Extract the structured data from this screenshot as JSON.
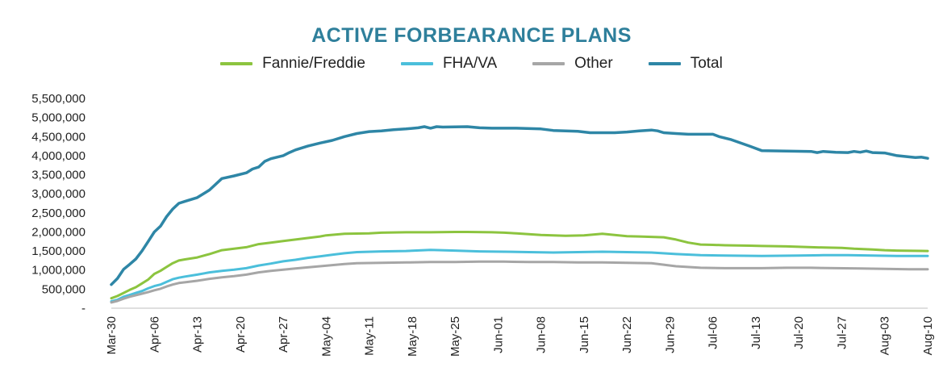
{
  "chart_data": {
    "type": "line",
    "title": "ACTIVE FORBEARANCE PLANS",
    "xlabel": "",
    "ylabel": "",
    "ylim": [
      0,
      5500000
    ],
    "yticks": [
      0,
      500000,
      1000000,
      1500000,
      2000000,
      2500000,
      3000000,
      3500000,
      4000000,
      4500000,
      5000000,
      5500000
    ],
    "ytick_labels": [
      "-",
      "500,000",
      "1,000,000",
      "1,500,000",
      "2,000,000",
      "2,500,000",
      "3,000,000",
      "3,500,000",
      "4,000,000",
      "4,500,000",
      "5,000,000",
      "5,500,000"
    ],
    "xtick_labels": [
      "Mar-30",
      "Apr-06",
      "Apr-13",
      "Apr-20",
      "Apr-27",
      "May-04",
      "May-11",
      "May-18",
      "May-25",
      "Jun-01",
      "Jun-08",
      "Jun-15",
      "Jun-22",
      "Jun-29",
      "Jul-06",
      "Jul-13",
      "Jul-20",
      "Jul-27",
      "Aug-03",
      "Aug-10"
    ],
    "grid": false,
    "legend_position": "top-center",
    "series": [
      {
        "name": "Fannie/Freddie",
        "color": "#8cc43f",
        "points": [
          [
            0,
            260000
          ],
          [
            1,
            320000
          ],
          [
            2,
            400000
          ],
          [
            3,
            480000
          ],
          [
            4,
            550000
          ],
          [
            5,
            650000
          ],
          [
            6,
            750000
          ],
          [
            7,
            900000
          ],
          [
            8,
            980000
          ],
          [
            9,
            1080000
          ],
          [
            10,
            1180000
          ],
          [
            11,
            1250000
          ],
          [
            12,
            1280000
          ],
          [
            14,
            1330000
          ],
          [
            16,
            1420000
          ],
          [
            18,
            1520000
          ],
          [
            20,
            1560000
          ],
          [
            22,
            1600000
          ],
          [
            24,
            1680000
          ],
          [
            26,
            1720000
          ],
          [
            28,
            1760000
          ],
          [
            30,
            1800000
          ],
          [
            32,
            1840000
          ],
          [
            34,
            1880000
          ],
          [
            35,
            1910000
          ],
          [
            38,
            1950000
          ],
          [
            42,
            1960000
          ],
          [
            44,
            1980000
          ],
          [
            48,
            1990000
          ],
          [
            52,
            1990000
          ],
          [
            56,
            2000000
          ],
          [
            58,
            2000000
          ],
          [
            62,
            1990000
          ],
          [
            64,
            1980000
          ],
          [
            66,
            1960000
          ],
          [
            68,
            1940000
          ],
          [
            70,
            1920000
          ],
          [
            72,
            1910000
          ],
          [
            74,
            1900000
          ],
          [
            77,
            1910000
          ],
          [
            80,
            1950000
          ],
          [
            82,
            1920000
          ],
          [
            84,
            1890000
          ],
          [
            86,
            1880000
          ],
          [
            88,
            1870000
          ],
          [
            90,
            1860000
          ],
          [
            92,
            1800000
          ],
          [
            94,
            1720000
          ],
          [
            96,
            1670000
          ],
          [
            98,
            1660000
          ],
          [
            100,
            1650000
          ],
          [
            104,
            1640000
          ],
          [
            106,
            1630000
          ],
          [
            110,
            1620000
          ],
          [
            112,
            1610000
          ],
          [
            114,
            1600000
          ],
          [
            116,
            1590000
          ],
          [
            119,
            1580000
          ],
          [
            121,
            1560000
          ],
          [
            124,
            1540000
          ],
          [
            126,
            1520000
          ],
          [
            128,
            1510000
          ],
          [
            133,
            1500000
          ]
        ]
      },
      {
        "name": "FHA/VA",
        "color": "#4bbfdb",
        "points": [
          [
            0,
            180000
          ],
          [
            1,
            220000
          ],
          [
            2,
            300000
          ],
          [
            3,
            350000
          ],
          [
            4,
            400000
          ],
          [
            5,
            450000
          ],
          [
            6,
            520000
          ],
          [
            7,
            580000
          ],
          [
            8,
            620000
          ],
          [
            9,
            690000
          ],
          [
            10,
            760000
          ],
          [
            11,
            800000
          ],
          [
            12,
            830000
          ],
          [
            14,
            880000
          ],
          [
            16,
            940000
          ],
          [
            18,
            980000
          ],
          [
            20,
            1010000
          ],
          [
            22,
            1050000
          ],
          [
            24,
            1120000
          ],
          [
            26,
            1170000
          ],
          [
            28,
            1230000
          ],
          [
            30,
            1270000
          ],
          [
            32,
            1320000
          ],
          [
            34,
            1360000
          ],
          [
            36,
            1400000
          ],
          [
            38,
            1440000
          ],
          [
            40,
            1470000
          ],
          [
            44,
            1490000
          ],
          [
            48,
            1500000
          ],
          [
            52,
            1530000
          ],
          [
            56,
            1510000
          ],
          [
            60,
            1490000
          ],
          [
            64,
            1480000
          ],
          [
            68,
            1470000
          ],
          [
            72,
            1460000
          ],
          [
            76,
            1470000
          ],
          [
            80,
            1480000
          ],
          [
            84,
            1470000
          ],
          [
            88,
            1460000
          ],
          [
            92,
            1420000
          ],
          [
            96,
            1390000
          ],
          [
            100,
            1380000
          ],
          [
            106,
            1370000
          ],
          [
            112,
            1380000
          ],
          [
            116,
            1390000
          ],
          [
            120,
            1390000
          ],
          [
            124,
            1380000
          ],
          [
            128,
            1370000
          ],
          [
            133,
            1370000
          ]
        ]
      },
      {
        "name": "Other",
        "color": "#a6a6a6",
        "points": [
          [
            0,
            150000
          ],
          [
            1,
            190000
          ],
          [
            2,
            250000
          ],
          [
            3,
            300000
          ],
          [
            4,
            340000
          ],
          [
            5,
            380000
          ],
          [
            6,
            420000
          ],
          [
            7,
            470000
          ],
          [
            8,
            510000
          ],
          [
            9,
            570000
          ],
          [
            10,
            620000
          ],
          [
            11,
            660000
          ],
          [
            12,
            680000
          ],
          [
            14,
            720000
          ],
          [
            16,
            770000
          ],
          [
            18,
            810000
          ],
          [
            20,
            840000
          ],
          [
            22,
            880000
          ],
          [
            24,
            940000
          ],
          [
            26,
            980000
          ],
          [
            28,
            1010000
          ],
          [
            30,
            1040000
          ],
          [
            32,
            1070000
          ],
          [
            34,
            1100000
          ],
          [
            36,
            1130000
          ],
          [
            38,
            1160000
          ],
          [
            40,
            1180000
          ],
          [
            44,
            1190000
          ],
          [
            48,
            1200000
          ],
          [
            52,
            1210000
          ],
          [
            56,
            1210000
          ],
          [
            60,
            1220000
          ],
          [
            64,
            1220000
          ],
          [
            68,
            1210000
          ],
          [
            72,
            1210000
          ],
          [
            76,
            1200000
          ],
          [
            80,
            1200000
          ],
          [
            84,
            1190000
          ],
          [
            88,
            1180000
          ],
          [
            92,
            1100000
          ],
          [
            96,
            1060000
          ],
          [
            100,
            1050000
          ],
          [
            106,
            1050000
          ],
          [
            110,
            1060000
          ],
          [
            114,
            1060000
          ],
          [
            118,
            1050000
          ],
          [
            122,
            1040000
          ],
          [
            126,
            1030000
          ],
          [
            130,
            1020000
          ],
          [
            133,
            1020000
          ]
        ]
      },
      {
        "name": "Total",
        "color": "#2e86a6",
        "points": [
          [
            0,
            620000
          ],
          [
            1,
            780000
          ],
          [
            2,
            1020000
          ],
          [
            3,
            1150000
          ],
          [
            4,
            1290000
          ],
          [
            5,
            1500000
          ],
          [
            6,
            1750000
          ],
          [
            7,
            2000000
          ],
          [
            8,
            2150000
          ],
          [
            9,
            2400000
          ],
          [
            10,
            2600000
          ],
          [
            11,
            2750000
          ],
          [
            12,
            2800000
          ],
          [
            14,
            2900000
          ],
          [
            16,
            3100000
          ],
          [
            18,
            3400000
          ],
          [
            20,
            3470000
          ],
          [
            22,
            3550000
          ],
          [
            23,
            3650000
          ],
          [
            24,
            3700000
          ],
          [
            25,
            3850000
          ],
          [
            26,
            3920000
          ],
          [
            28,
            4000000
          ],
          [
            29,
            4080000
          ],
          [
            30,
            4150000
          ],
          [
            32,
            4250000
          ],
          [
            34,
            4330000
          ],
          [
            36,
            4400000
          ],
          [
            38,
            4500000
          ],
          [
            40,
            4580000
          ],
          [
            42,
            4630000
          ],
          [
            44,
            4650000
          ],
          [
            46,
            4680000
          ],
          [
            48,
            4700000
          ],
          [
            50,
            4730000
          ],
          [
            51,
            4760000
          ],
          [
            52,
            4720000
          ],
          [
            53,
            4760000
          ],
          [
            54,
            4750000
          ],
          [
            58,
            4760000
          ],
          [
            60,
            4730000
          ],
          [
            62,
            4720000
          ],
          [
            66,
            4720000
          ],
          [
            70,
            4700000
          ],
          [
            72,
            4660000
          ],
          [
            76,
            4640000
          ],
          [
            78,
            4600000
          ],
          [
            82,
            4600000
          ],
          [
            84,
            4620000
          ],
          [
            86,
            4650000
          ],
          [
            88,
            4670000
          ],
          [
            89,
            4650000
          ],
          [
            90,
            4600000
          ],
          [
            92,
            4580000
          ],
          [
            94,
            4560000
          ],
          [
            96,
            4560000
          ],
          [
            98,
            4560000
          ],
          [
            99,
            4500000
          ],
          [
            101,
            4420000
          ],
          [
            104,
            4250000
          ],
          [
            106,
            4130000
          ],
          [
            110,
            4120000
          ],
          [
            114,
            4110000
          ],
          [
            115,
            4080000
          ],
          [
            116,
            4110000
          ],
          [
            118,
            4090000
          ],
          [
            120,
            4080000
          ],
          [
            121,
            4110000
          ],
          [
            122,
            4090000
          ],
          [
            123,
            4120000
          ],
          [
            124,
            4080000
          ],
          [
            126,
            4070000
          ],
          [
            128,
            4000000
          ],
          [
            131,
            3950000
          ],
          [
            132,
            3960000
          ],
          [
            133,
            3930000
          ]
        ]
      }
    ]
  }
}
